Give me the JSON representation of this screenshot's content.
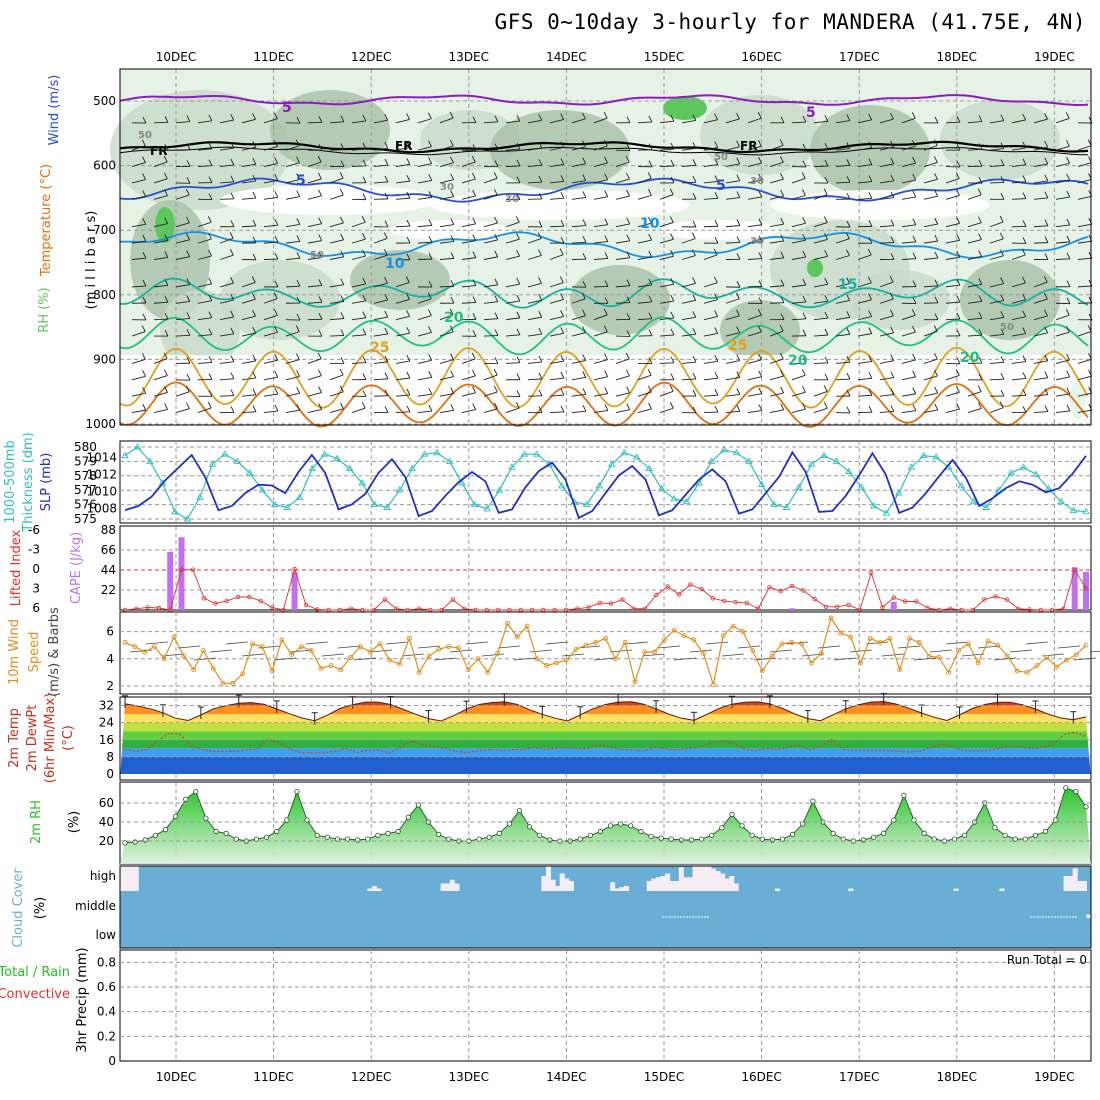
{
  "title": "GFS 0~10day 3-hourly for MANDERA (41.75E, 4N)",
  "colors": {
    "frame": "#000000",
    "grid": "#9a9a9a",
    "rh_light": "#e6f2e6",
    "rh_mid": "#c9d9c9",
    "rh_dark": "#a9bfa9",
    "rh_sat": "#5cc85c",
    "wind5": "#8c1cc0",
    "fr": "#000000",
    "t5": "#2a50d0",
    "t10": "#1a90e0",
    "t15": "#1ab0a0",
    "t20": "#22c080",
    "t25": "#e0a020",
    "t30": "#e07010",
    "t35": "#d02080",
    "thick": "#30c0c0",
    "slp": "#2030c0",
    "li": "#e03030",
    "cape": "#c070f0",
    "wind10": "#e09020",
    "cloud": "#6aaed6",
    "cloud_high": "#f4eef4",
    "rh2": "#30c030",
    "temp_top": "#d03010"
  },
  "chart_data": {
    "type": "meteogram",
    "x_labels": [
      "10DEC",
      "11DEC",
      "12DEC",
      "13DEC",
      "14DEC",
      "15DEC",
      "16DEC",
      "17DEC",
      "18DEC",
      "19DEC"
    ],
    "panels": {
      "upper_air": {
        "ylabels": [
          "Wind (m/s)",
          "Temperature (°C)",
          "RH (%)",
          "(m i l l i b a r s)"
        ],
        "yticks": [
          500,
          600,
          700,
          800,
          900,
          1000
        ],
        "contour_labels": [
          "5",
          "5",
          "FR",
          "FR",
          "FR",
          "5",
          "5",
          "10",
          "10",
          "15",
          "20",
          "20",
          "25",
          "25",
          "20",
          "30",
          "30",
          "30",
          "30",
          "50",
          "50",
          "50",
          "50"
        ]
      },
      "thickness_slp": {
        "ylabels": [
          "1000-500mb",
          "Thickness (dm)",
          "SLP (mb)"
        ],
        "thickness_ticks": [
          575,
          576,
          577,
          578,
          579,
          580
        ],
        "slp_ticks": [
          1008,
          1010,
          1012,
          1014
        ],
        "thickness": [
          579.4,
          580,
          579,
          577.5,
          575.5,
          575,
          576.5,
          578.8,
          579.5,
          579,
          578.2,
          577,
          576,
          575.8,
          576.5,
          578.5,
          579.5,
          579.2,
          578.5,
          577.5,
          576,
          575.8,
          577,
          578.5,
          579.5,
          579.6,
          579,
          577.5,
          576,
          575.7,
          577,
          578.6,
          579.5,
          579.5,
          578.8,
          577.3,
          576.2,
          576,
          577.3,
          578.8,
          579.6,
          579.3,
          578.5,
          577.1,
          576.4,
          576.2,
          577.5,
          579,
          579.8,
          579.6,
          579,
          577.4,
          576,
          575.8,
          577.2,
          578.8,
          579.4,
          579,
          578.3,
          577.2,
          575.9,
          575.4,
          576.8,
          578.6,
          579.4,
          579.3,
          578.6,
          577.3,
          576.2,
          575.8,
          577,
          578.2,
          578.6,
          578.1,
          577.1,
          576.2,
          575.6,
          575.5
        ],
        "slp": [
          1007.8,
          1008.3,
          1009.4,
          1011.3,
          1012.8,
          1014.3,
          1011.7,
          1007.8,
          1008.3,
          1009.8,
          1010.8,
          1010.7,
          1009.8,
          1012.3,
          1014.3,
          1012.2,
          1007.9,
          1008.5,
          1009.7,
          1012.2,
          1013.8,
          1011.7,
          1007.1,
          1007.7,
          1009.5,
          1011.1,
          1012.3,
          1011.2,
          1007.5,
          1007.9,
          1010.5,
          1012.4,
          1013.4,
          1011.4,
          1006.9,
          1007.7,
          1009.8,
          1011.9,
          1013.0,
          1011.4,
          1007.2,
          1007.8,
          1009.6,
          1011.4,
          1012.6,
          1011.2,
          1007.4,
          1007.9,
          1009.8,
          1011.7,
          1014.6,
          1012.3,
          1007.6,
          1007.7,
          1009.5,
          1011.9,
          1014.5,
          1012.0,
          1007.5,
          1008.1,
          1009.8,
          1011.8,
          1013.7,
          1011.6,
          1008.3,
          1009.2,
          1010.4,
          1011.2,
          1010.8,
          1009.9,
          1010.4,
          1012.1,
          1014.2
        ]
      },
      "lifted_cape": {
        "ylabels": [
          "Lifted Index",
          "CAPE (J/kg)"
        ],
        "li_ticks": [
          "6",
          "3",
          "0",
          "-3",
          "-6"
        ],
        "cape_ticks": [
          22,
          44,
          66,
          88
        ],
        "lifted_index": [
          6,
          5.8,
          5.6,
          5.7,
          6,
          -0.2,
          -0.2,
          4.2,
          5,
          4.6,
          4,
          4,
          4.6,
          5.6,
          6,
          -0.3,
          5.2,
          5.9,
          6,
          6,
          5.8,
          6,
          6,
          4.4,
          5.8,
          6,
          5.8,
          6,
          6,
          4.4,
          5.8,
          6,
          6,
          6,
          6,
          6,
          6,
          6,
          6,
          6,
          5.8,
          5.6,
          4.9,
          5,
          4.4,
          5.8,
          5.8,
          3.7,
          2.4,
          3.6,
          2.1,
          2.8,
          4.2,
          4.6,
          4.8,
          4.9,
          5.8,
          2.5,
          3.1,
          2.3,
          3,
          4.3,
          5.5,
          5.5,
          5.2,
          6,
          0.3,
          5.6,
          4.1,
          4.7,
          4.7,
          5.7,
          6,
          5.8,
          6,
          6,
          4.4,
          3.9,
          4.4,
          5.8,
          5.9,
          6,
          6,
          5.8,
          -0.2,
          2.7
        ],
        "cape": [
          0,
          0,
          0,
          0,
          64,
          80,
          0,
          0,
          0,
          0,
          0,
          0,
          0,
          0,
          0,
          42,
          0,
          0,
          0,
          0,
          0,
          0,
          0,
          0,
          0,
          0,
          0,
          0,
          0,
          0,
          0,
          0,
          0,
          0,
          0,
          0,
          0,
          0,
          0,
          0,
          0,
          0,
          0,
          0,
          0,
          0,
          0,
          0,
          0,
          0,
          0,
          0,
          0,
          0,
          0,
          0,
          0,
          0,
          0,
          2,
          0,
          0,
          0,
          0,
          0,
          0,
          0,
          0,
          9,
          0,
          0,
          0,
          0,
          0,
          0,
          0,
          0,
          0,
          0,
          0,
          0,
          0,
          0,
          0,
          47,
          42
        ]
      },
      "wind10m": {
        "ylabels": [
          "10m Wind",
          "Speed",
          "(m/s) & Barbs"
        ],
        "yticks": [
          2,
          4,
          6
        ],
        "speed": [
          5.2,
          4.9,
          4.5,
          4.9,
          4.0,
          5.6,
          4.2,
          3.2,
          4.6,
          3.3,
          2.2,
          2.2,
          2.9,
          5.1,
          4.9,
          3.1,
          5.4,
          4.3,
          4.9,
          4.6,
          3.3,
          3.5,
          3.2,
          4.1,
          4.9,
          4.5,
          5.1,
          3.9,
          3.6,
          5.5,
          3.0,
          4.2,
          4.7,
          4.9,
          4.8,
          3.2,
          4.0,
          3.0,
          4.4,
          6.6,
          5.6,
          6.4,
          4.0,
          3.5,
          3.7,
          3.9,
          4.7,
          5.0,
          5.2,
          5.5,
          4.0,
          5.2,
          2.3,
          4.5,
          4.5,
          5.4,
          6.1,
          5.7,
          5.4,
          4.4,
          2.1,
          5.7,
          6.4,
          6.0,
          4.6,
          3.1,
          4.2,
          5.1,
          5.2,
          5.1,
          3.7,
          4.4,
          7.0,
          5.9,
          5.6,
          3.7,
          5.5,
          5.2,
          5.5,
          3.2,
          5.5,
          5.2,
          4.2,
          4.1,
          3.0,
          4.6,
          5.1,
          3.7,
          5.3,
          5.0,
          4.2,
          3.1,
          3.0,
          3.5,
          4.1,
          3.4,
          3.9,
          4.3,
          5.0
        ]
      },
      "temp_dew": {
        "ylabels": [
          "2m Temp",
          "2m DewPt",
          "(6hr Min/Max)",
          "(°C)"
        ],
        "yticks": [
          0,
          8,
          16,
          24,
          32
        ],
        "temp": [
          32.8,
          31.8,
          30.5,
          28.6,
          26.1,
          25.0,
          27.6,
          30.5,
          32.0,
          33.1,
          33.4,
          32.6,
          30.4,
          28.2,
          26.2,
          24.9,
          27.5,
          30.6,
          32.4,
          33.6,
          33.6,
          32.5,
          30.2,
          27.9,
          25.9,
          24.8,
          27.3,
          30.3,
          32.5,
          33.4,
          33.8,
          32.6,
          30.0,
          27.9,
          26.1,
          24.8,
          27.7,
          30.5,
          32.5,
          33.6,
          33.8,
          32.7,
          30.5,
          28.0,
          26.1,
          25.1,
          27.8,
          30.7,
          32.6,
          33.5,
          33.7,
          32.8,
          30.6,
          28.0,
          25.9,
          24.9,
          27.7,
          30.5,
          32.4,
          33.6,
          33.9,
          32.7,
          30.7,
          28.5,
          26.5,
          25.0,
          27.6,
          30.6,
          32.5,
          33.5,
          33.5,
          32.3,
          30.4,
          28.0,
          26.2,
          25.4,
          26.7
        ],
        "dewpoint": [
          11.5,
          10.5,
          11.5,
          15.8,
          19.0,
          18.5,
          13.0,
          11.5,
          10.5,
          10.5,
          10.6,
          11.2,
          11.8,
          16.5,
          14.5,
          11.5,
          10.0,
          10.0,
          10.0,
          10.5,
          12.0,
          10.0,
          11.2,
          11.1,
          10.0,
          12.5,
          15.5,
          13.7,
          12.8,
          12.0,
          10.5,
          10.0,
          10.8,
          11.5,
          11.0,
          11.3,
          11.6,
          12.5,
          11.5,
          12.0,
          12.4,
          11.8,
          12.0,
          13.5,
          12.5,
          11.5,
          11.2,
          10.8,
          12.5,
          11.8,
          11.2,
          12.2,
          12.5,
          14.5,
          15.3,
          14.5,
          12.0,
          10.8,
          12.0,
          11.5,
          12.5,
          13.5,
          11.3,
          13.0,
          16.0,
          11.5,
          11.1,
          11.0,
          10.9,
          11.0,
          10.6,
          10.3,
          10.8,
          12.5,
          14.0,
          12.5,
          11.0,
          10.7,
          11.0,
          11.8,
          13.2,
          12.8,
          12.0,
          12.5,
          13.6,
          18.5,
          19.5,
          17.5
        ]
      },
      "rh2m": {
        "ylabels": [
          "2m RH",
          "(%)"
        ],
        "yticks": [
          20,
          40,
          60
        ],
        "rh": [
          18,
          19,
          21,
          26,
          32,
          46,
          64,
          72,
          44,
          30,
          28,
          22,
          20,
          22,
          24,
          30,
          42,
          72,
          42,
          26,
          24,
          22,
          22,
          21,
          22,
          26,
          28,
          30,
          45,
          58,
          40,
          27,
          22,
          20,
          20,
          22,
          24,
          28,
          38,
          52,
          35,
          26,
          21,
          20,
          20,
          22,
          26,
          30,
          36,
          38,
          36,
          30,
          25,
          23,
          22,
          21,
          21,
          22,
          26,
          34,
          48,
          36,
          26,
          22,
          21,
          22,
          27,
          38,
          62,
          40,
          28,
          22,
          20,
          21,
          24,
          28,
          42,
          68,
          42,
          28,
          22,
          20,
          22,
          26,
          40,
          60,
          34,
          26,
          22,
          22,
          26,
          30,
          42,
          76,
          72,
          56
        ]
      },
      "cloud": {
        "ylabels": [
          "Cloud Cover",
          "(%)"
        ],
        "levels": [
          "high",
          "middle",
          "low"
        ],
        "high": [
          98,
          98,
          98,
          98,
          0,
          0,
          0,
          0,
          0,
          0,
          0,
          0,
          0,
          0,
          0,
          0,
          0,
          0,
          0,
          0,
          0,
          0,
          0,
          0,
          0,
          0,
          0,
          0,
          0,
          0,
          0,
          0,
          0,
          0,
          0,
          0,
          0,
          0,
          0,
          0,
          0,
          0,
          0,
          0,
          0,
          0,
          0,
          0,
          0,
          0,
          0,
          0,
          0,
          0,
          10,
          20,
          10,
          0,
          0,
          0,
          0,
          0,
          0,
          0,
          0,
          0,
          0,
          0,
          0,
          0,
          30,
          30,
          45,
          30,
          0,
          0,
          0,
          0,
          0,
          0,
          0,
          0,
          0,
          0,
          0,
          0,
          0,
          0,
          0,
          0,
          0,
          0,
          60,
          100,
          45,
          20,
          70,
          50,
          40,
          0,
          0,
          0,
          0,
          0,
          0,
          0,
          0,
          35,
          10,
          15,
          20,
          0,
          0,
          0,
          0,
          40,
          50,
          55,
          60,
          70,
          40,
          40,
          95,
          55,
          55,
          100,
          100,
          100,
          100,
          90,
          80,
          70,
          50,
          60,
          30,
          0,
          0,
          0,
          0,
          0,
          0,
          0,
          0,
          10,
          0,
          0,
          0,
          0,
          0,
          0,
          0,
          0,
          0,
          0,
          0,
          0,
          0,
          0,
          0,
          10,
          0,
          0,
          0,
          0,
          0,
          0,
          0,
          0,
          0,
          0,
          0,
          0,
          0,
          0,
          0,
          0,
          0,
          0,
          0,
          0,
          0,
          0,
          10,
          0,
          0,
          0,
          0,
          0,
          0,
          0,
          0,
          0,
          10,
          0,
          0,
          0,
          0,
          0,
          0,
          0,
          0,
          0,
          0,
          0,
          0,
          0,
          60,
          60,
          90,
          40,
          40,
          0
        ],
        "middle": [
          0,
          0,
          0,
          0,
          0,
          0,
          0,
          0,
          0,
          0,
          0,
          0,
          0,
          0,
          0,
          0,
          0,
          0,
          0,
          0,
          0,
          0,
          0,
          0,
          0,
          0,
          0,
          0,
          0,
          0,
          0,
          0,
          0,
          0,
          0,
          0,
          0,
          0,
          0,
          0,
          0,
          0,
          0,
          0,
          0,
          0,
          0,
          0,
          0,
          0,
          0,
          0,
          0,
          0,
          0,
          0,
          0,
          0,
          0,
          0,
          0,
          0,
          0,
          0,
          0,
          0,
          0,
          0,
          0,
          0,
          0,
          0,
          0,
          0,
          0,
          0,
          0,
          0,
          0,
          0,
          0,
          0,
          0,
          0,
          0,
          0,
          0,
          0,
          0,
          0,
          0,
          0,
          0,
          0,
          0,
          0,
          0,
          0,
          0,
          0,
          0,
          0,
          0,
          0,
          0,
          0,
          0,
          0,
          0,
          0,
          0,
          0,
          0,
          0,
          0,
          0,
          0,
          0,
          0,
          0,
          0,
          0,
          0,
          0,
          0,
          0,
          0,
          0,
          0,
          0,
          0,
          0,
          0,
          0,
          0,
          0,
          0,
          0,
          0,
          0,
          0,
          0,
          0,
          0,
          0,
          0,
          0,
          0,
          0,
          0,
          0,
          0,
          0,
          0,
          0,
          0,
          0,
          0,
          0,
          0,
          0,
          0,
          0,
          0,
          0,
          0,
          0,
          0,
          0,
          0,
          0,
          0,
          0,
          0,
          0,
          0,
          0,
          0,
          0,
          0,
          0,
          0,
          0,
          0,
          0,
          0,
          0,
          0,
          0,
          0,
          0,
          0,
          0,
          0,
          0,
          0,
          0,
          0,
          0,
          0,
          0,
          0,
          0,
          0,
          0,
          0,
          0,
          0,
          0,
          0,
          0,
          25,
          25,
          0,
          0,
          0
        ]
      },
      "precip": {
        "ylabels": [
          "Total / Rain",
          "Convective",
          "3hr Precip (mm)"
        ],
        "yticks": [
          "0",
          "0.2",
          "0.4",
          "0.6",
          "0.8"
        ],
        "run_total": "Run Total = 0",
        "total": [],
        "convective": []
      }
    }
  }
}
